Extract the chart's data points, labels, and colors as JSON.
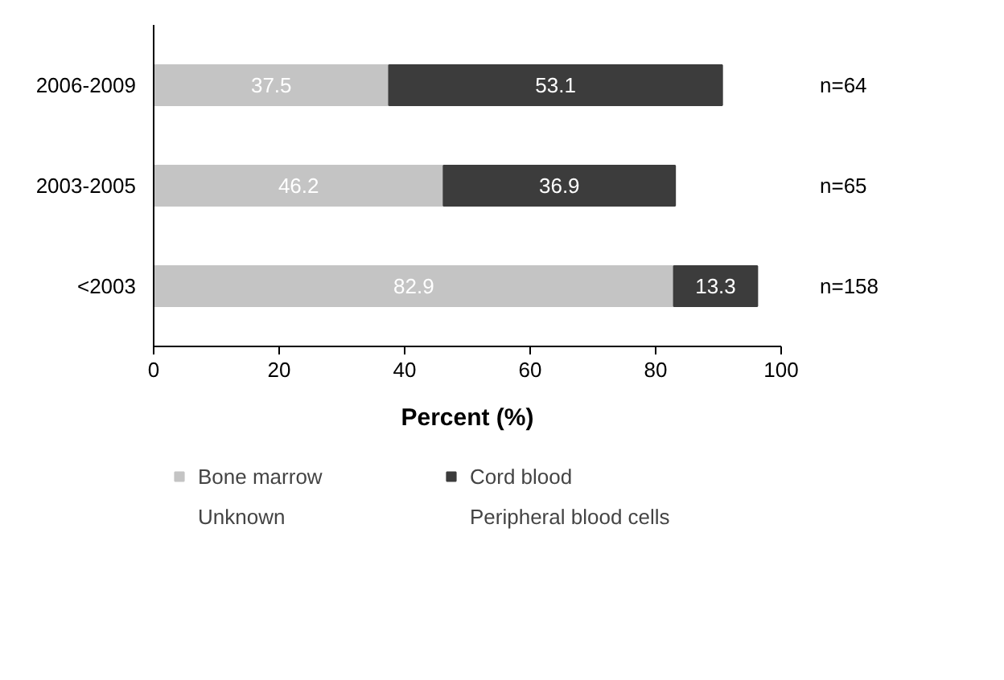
{
  "chart_data": {
    "type": "bar",
    "orientation": "horizontal",
    "stacked": true,
    "categories": [
      "2006-2009",
      "2003-2005",
      "<2003"
    ],
    "series": [
      {
        "name": "Bone marrow",
        "color": "#c4c4c4",
        "values": [
          37.5,
          46.2,
          82.9
        ]
      },
      {
        "name": "Cord blood",
        "color": "#3c3c3c",
        "values": [
          53.1,
          36.9,
          13.3
        ]
      },
      {
        "name": "Unknown",
        "values": [
          null,
          null,
          null
        ]
      },
      {
        "name": "Peripheral blood cells",
        "values": [
          null,
          null,
          null
        ]
      }
    ],
    "xlabel": "Percent (%)",
    "xlim": [
      0,
      100
    ],
    "xticks": [
      0,
      20,
      40,
      60,
      80,
      100
    ],
    "data_labels": true,
    "grid": false,
    "legend": "bottom",
    "annotations": [
      "n=64",
      "n=65",
      "n=158"
    ]
  }
}
